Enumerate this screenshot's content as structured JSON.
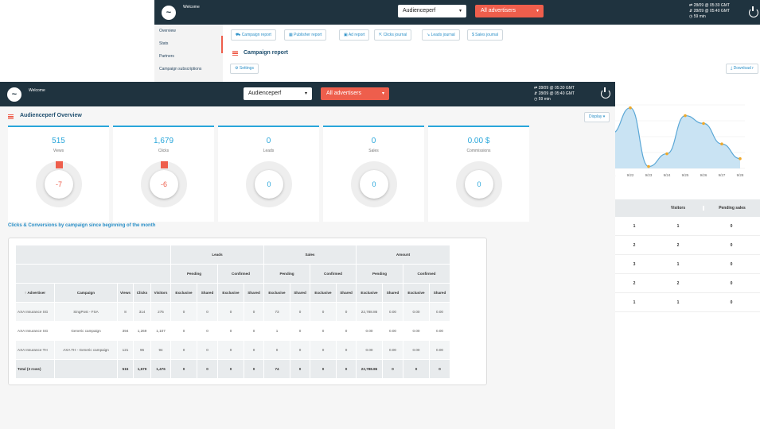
{
  "back_window": {
    "welcome": "Welcome",
    "account_select": "Audienceperf",
    "advertiser_select": "All advertisers",
    "status": [
      "28/09 @ 05:30 GMT",
      "28/09 @ 05:40 GMT",
      "59 min"
    ],
    "sidebar": [
      "Overview",
      "Stats",
      "Partners",
      "Campaign subscriptions"
    ],
    "subtabs": [
      "Campaign report",
      "Publisher report",
      "Ad report",
      "Clicks journal",
      "Leads journal",
      "Sales journal"
    ],
    "page_title": "Campaign report",
    "settings_label": "Settings",
    "download_label": "Download r",
    "chart_data": {
      "type": "line",
      "x": [
        "9/21",
        "9/22",
        "9/23",
        "9/24",
        "9/25",
        "9/26",
        "9/27",
        "9/28"
      ],
      "values": [
        36,
        62,
        2,
        15,
        54,
        46,
        25,
        10
      ],
      "title": "",
      "xlabel": "",
      "ylabel": "",
      "grid": true
    },
    "table": {
      "headers": [
        "",
        "Visitors",
        "Pending sales"
      ],
      "rows": [
        [
          "1",
          "1",
          "0"
        ],
        [
          "2",
          "2",
          "0"
        ],
        [
          "3",
          "1",
          "0"
        ],
        [
          "2",
          "2",
          "0"
        ],
        [
          "1",
          "1",
          "0"
        ]
      ]
    }
  },
  "front_window": {
    "welcome": "Welcome",
    "account_select": "Audienceperf",
    "advertiser_select": "All advertisers",
    "status": [
      "28/09 @ 05:30 GMT",
      "28/09 @ 05:40 GMT",
      "59 min"
    ],
    "page_title": "Audienceperf Overview",
    "display_label": "Display",
    "cards": [
      {
        "value": "515",
        "label": "Views",
        "gauge": "-7"
      },
      {
        "value": "1,679",
        "label": "Clicks",
        "gauge": "-6"
      },
      {
        "value": "0",
        "label": "Leads",
        "gauge": "0"
      },
      {
        "value": "0",
        "label": "Sales",
        "gauge": "0"
      },
      {
        "value": "0.00 $",
        "label": "Commissions",
        "gauge": "0"
      }
    ],
    "section_title": "Clicks & Conversions by campaign since beginning of the month",
    "table": {
      "groups": [
        "Leads",
        "Sales",
        "Amount"
      ],
      "subgroups": [
        "Pending",
        "Confirmed",
        "Pending",
        "Confirmed",
        "Pending",
        "Confirmed"
      ],
      "columns": [
        "↑ Advertiser",
        "Campaign",
        "Views",
        "Clicks",
        "Visitors",
        "Exclusive",
        "Shared",
        "Exclusive",
        "Shared",
        "Exclusive",
        "Shared",
        "Exclusive",
        "Shared",
        "Exclusive",
        "Shared",
        "Exclusive",
        "Shared"
      ],
      "rows": [
        [
          "AXA Insurance SG",
          "SingPost - FSA",
          "8",
          "314",
          "275",
          "0",
          "0",
          "0",
          "0",
          "73",
          "0",
          "0",
          "0",
          "22,788.86",
          "0.00",
          "0.00",
          "0.00"
        ],
        [
          "AXA Insurance SG",
          "Generic campaign",
          "394",
          "1,269",
          "1,107",
          "0",
          "0",
          "0",
          "0",
          "1",
          "0",
          "0",
          "0",
          "0.00",
          "0.00",
          "0.00",
          "0.00"
        ],
        [
          "AXA Insurance TH",
          "AXA TH - Generic campaign",
          "121",
          "96",
          "94",
          "0",
          "0",
          "0",
          "0",
          "0",
          "0",
          "0",
          "0",
          "0.00",
          "0.00",
          "0.00",
          "0.00"
        ]
      ],
      "total": [
        "Total (3 rows)",
        "",
        "515",
        "1,679",
        "1,476",
        "0",
        "0",
        "0",
        "0",
        "74",
        "0",
        "0",
        "0",
        "22,788.86",
        "0",
        "0",
        "0"
      ]
    }
  }
}
